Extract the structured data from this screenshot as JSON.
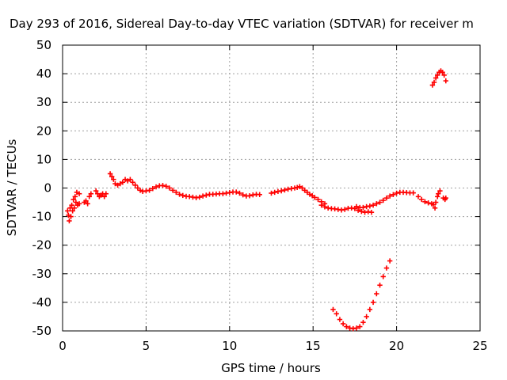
{
  "chart_data": {
    "type": "scatter",
    "title": "Day 293 of 2016, Sidereal Day-to-day VTEC variation (SDTVAR) for receiver m",
    "xlabel": "GPS time / hours",
    "ylabel": "SDTVAR / TECUs",
    "xlim": [
      0,
      25
    ],
    "ylim": [
      -50,
      50
    ],
    "xticks": [
      0,
      5,
      10,
      15,
      20,
      25
    ],
    "yticks": [
      -50,
      -40,
      -30,
      -20,
      -10,
      0,
      10,
      20,
      30,
      40,
      50
    ],
    "grid": true,
    "marker": "+",
    "color": "#ff0000",
    "series": [
      {
        "name": "SDTVAR",
        "points": [
          [
            0.3,
            -8
          ],
          [
            0.35,
            -9.5
          ],
          [
            0.4,
            -11.5
          ],
          [
            0.45,
            -7
          ],
          [
            0.5,
            -10
          ],
          [
            0.55,
            -6
          ],
          [
            0.6,
            -8
          ],
          [
            0.65,
            -4
          ],
          [
            0.7,
            -7
          ],
          [
            0.75,
            -3
          ],
          [
            0.8,
            -5
          ],
          [
            0.85,
            -1.5
          ],
          [
            0.9,
            -6
          ],
          [
            1.0,
            -2
          ],
          [
            1.0,
            -5.5
          ],
          [
            1.3,
            -5
          ],
          [
            1.4,
            -4.5
          ],
          [
            1.5,
            -5.5
          ],
          [
            1.6,
            -3
          ],
          [
            1.7,
            -2
          ],
          [
            2.0,
            -1
          ],
          [
            2.1,
            -2
          ],
          [
            2.2,
            -3
          ],
          [
            2.3,
            -2.5
          ],
          [
            2.4,
            -2
          ],
          [
            2.5,
            -3
          ],
          [
            2.6,
            -2
          ],
          [
            2.85,
            5
          ],
          [
            2.95,
            4
          ],
          [
            3.05,
            3
          ],
          [
            3.15,
            1.5
          ],
          [
            3.3,
            1
          ],
          [
            3.45,
            1.5
          ],
          [
            3.6,
            2
          ],
          [
            3.75,
            3
          ],
          [
            3.9,
            2.5
          ],
          [
            4.05,
            3
          ],
          [
            4.2,
            2
          ],
          [
            4.35,
            1
          ],
          [
            4.5,
            0
          ],
          [
            4.65,
            -0.8
          ],
          [
            4.8,
            -1.2
          ],
          [
            5.0,
            -1
          ],
          [
            5.2,
            -0.8
          ],
          [
            5.4,
            -0.2
          ],
          [
            5.6,
            0.4
          ],
          [
            5.8,
            0.8
          ],
          [
            6.0,
            0.9
          ],
          [
            6.2,
            0.6
          ],
          [
            6.4,
            0
          ],
          [
            6.6,
            -0.8
          ],
          [
            6.8,
            -1.5
          ],
          [
            7.0,
            -2.2
          ],
          [
            7.2,
            -2.6
          ],
          [
            7.4,
            -2.9
          ],
          [
            7.6,
            -3
          ],
          [
            7.8,
            -3.2
          ],
          [
            8.0,
            -3.4
          ],
          [
            8.2,
            -3.2
          ],
          [
            8.4,
            -2.8
          ],
          [
            8.6,
            -2.5
          ],
          [
            8.8,
            -2.2
          ],
          [
            9.0,
            -2.2
          ],
          [
            9.2,
            -2.1
          ],
          [
            9.4,
            -2
          ],
          [
            9.6,
            -2
          ],
          [
            9.8,
            -1.8
          ],
          [
            10.0,
            -1.6
          ],
          [
            10.2,
            -1.4
          ],
          [
            10.4,
            -1.4
          ],
          [
            10.6,
            -1.8
          ],
          [
            10.8,
            -2.4
          ],
          [
            11.0,
            -2.8
          ],
          [
            11.2,
            -2.7
          ],
          [
            11.4,
            -2.4
          ],
          [
            11.6,
            -2.2
          ],
          [
            11.8,
            -2.3
          ],
          [
            12.5,
            -1.8
          ],
          [
            12.7,
            -1.5
          ],
          [
            12.9,
            -1.2
          ],
          [
            13.1,
            -1
          ],
          [
            13.3,
            -0.7
          ],
          [
            13.5,
            -0.4
          ],
          [
            13.7,
            -0.2
          ],
          [
            13.9,
            0
          ],
          [
            14.05,
            0.2
          ],
          [
            14.2,
            0.5
          ],
          [
            14.35,
            0
          ],
          [
            14.5,
            -0.8
          ],
          [
            14.65,
            -1.5
          ],
          [
            14.8,
            -2.2
          ],
          [
            14.95,
            -2.7
          ],
          [
            15.1,
            -3.3
          ],
          [
            15.3,
            -4
          ],
          [
            15.5,
            -4.8
          ],
          [
            15.7,
            -5.5
          ],
          [
            15.5,
            -6
          ],
          [
            15.7,
            -6.6
          ],
          [
            15.9,
            -7
          ],
          [
            16.1,
            -7.2
          ],
          [
            16.3,
            -7.3
          ],
          [
            16.5,
            -7.5
          ],
          [
            16.7,
            -7.7
          ],
          [
            16.9,
            -7.5
          ],
          [
            17.1,
            -7.1
          ],
          [
            17.3,
            -7.0
          ],
          [
            17.5,
            -7.2
          ],
          [
            17.7,
            -7.8
          ],
          [
            17.9,
            -8.2
          ],
          [
            18.1,
            -8.5
          ],
          [
            18.3,
            -8.3
          ],
          [
            18.5,
            -8.5
          ],
          [
            17.6,
            -6.5
          ],
          [
            17.8,
            -6.8
          ],
          [
            18.0,
            -6.8
          ],
          [
            18.2,
            -6.5
          ],
          [
            18.4,
            -6.3
          ],
          [
            18.6,
            -6
          ],
          [
            18.8,
            -5.5
          ],
          [
            19.0,
            -5
          ],
          [
            19.2,
            -4.3
          ],
          [
            19.4,
            -3.5
          ],
          [
            19.6,
            -2.8
          ],
          [
            19.8,
            -2.3
          ],
          [
            20.0,
            -1.8
          ],
          [
            20.2,
            -1.5
          ],
          [
            20.4,
            -1.5
          ],
          [
            20.6,
            -1.6
          ],
          [
            20.8,
            -1.7
          ],
          [
            21.0,
            -1.7
          ],
          [
            21.3,
            -3
          ],
          [
            21.5,
            -4
          ],
          [
            21.7,
            -4.8
          ],
          [
            21.9,
            -5.2
          ],
          [
            22.1,
            -5.5
          ],
          [
            22.2,
            -5.8
          ],
          [
            22.3,
            -7
          ],
          [
            22.35,
            -5
          ],
          [
            22.45,
            -3
          ],
          [
            22.5,
            -2
          ],
          [
            22.6,
            -1
          ],
          [
            22.8,
            -3.5
          ],
          [
            22.9,
            -4
          ],
          [
            22.95,
            -3.5
          ],
          [
            22.15,
            36
          ],
          [
            22.25,
            37
          ],
          [
            22.35,
            38.5
          ],
          [
            22.45,
            39.5
          ],
          [
            22.55,
            40.5
          ],
          [
            22.65,
            41
          ],
          [
            22.75,
            40.5
          ],
          [
            22.85,
            39.5
          ],
          [
            22.95,
            37.5
          ],
          [
            16.2,
            -42.5
          ],
          [
            16.4,
            -44
          ],
          [
            16.6,
            -46
          ],
          [
            16.8,
            -47.5
          ],
          [
            17.0,
            -48.5
          ],
          [
            17.2,
            -49
          ],
          [
            17.4,
            -49.2
          ],
          [
            17.6,
            -49
          ],
          [
            17.8,
            -48.5
          ],
          [
            18.0,
            -47
          ],
          [
            18.2,
            -45
          ],
          [
            18.4,
            -42.5
          ],
          [
            18.6,
            -40
          ],
          [
            18.8,
            -37
          ],
          [
            19.0,
            -34
          ],
          [
            19.2,
            -31
          ],
          [
            19.4,
            -28
          ],
          [
            19.6,
            -25.5
          ]
        ]
      }
    ]
  }
}
